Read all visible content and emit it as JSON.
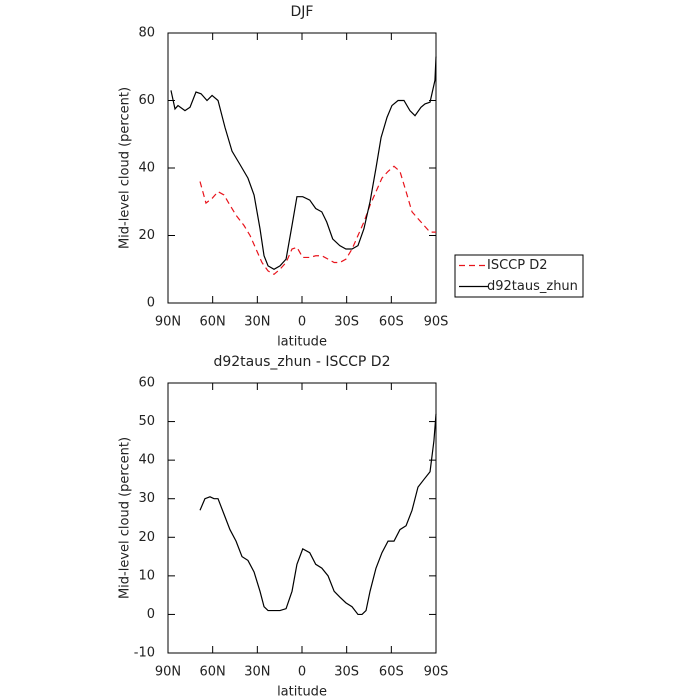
{
  "chart_data": [
    {
      "type": "line",
      "title": "DJF",
      "xlabel": "latitude",
      "ylabel": "Mid-level cloud (percent)",
      "xlim": [
        90,
        -90
      ],
      "xticks": [
        {
          "value": 90,
          "label": "90N"
        },
        {
          "value": 60,
          "label": "60N"
        },
        {
          "value": 30,
          "label": "30N"
        },
        0,
        {
          "value": -30,
          "label": "30S"
        },
        {
          "value": -60,
          "label": "60S"
        },
        {
          "value": -90,
          "label": "90S"
        }
      ],
      "ylim": [
        0,
        80
      ],
      "yticks": [
        0,
        20,
        40,
        60,
        80
      ],
      "legend": "right",
      "series": [
        {
          "name": "ISCCP D2",
          "color": "#e8141c",
          "line_style": "dashed",
          "x": [
            68.5,
            64.5,
            60.4,
            56.4,
            52.4,
            48.4,
            44.3,
            39,
            34.9,
            30.9,
            26.9,
            22.8,
            18.8,
            14.8,
            10.7,
            6.7,
            3.4,
            -0.5,
            -5.2,
            -9.2,
            -13.3,
            -17.5,
            -21.6,
            -25.4,
            -29.5,
            -33.6,
            -37.6,
            -41.6,
            -45.7,
            -49.7,
            -53.7,
            -57.8,
            -61.8,
            -65.8,
            -69.9,
            -73.9,
            -77.9,
            -81.9,
            -86,
            -90
          ],
          "values": [
            36,
            29.6,
            31,
            33,
            32,
            29,
            26,
            23,
            20,
            16,
            12,
            9.5,
            8.5,
            10,
            12,
            16,
            16.5,
            13.5,
            13.5,
            14,
            14,
            13,
            12,
            12,
            13,
            16,
            20,
            24,
            29,
            33,
            37,
            39,
            40.5,
            39,
            33,
            27,
            25,
            23,
            21,
            21
          ]
        },
        {
          "name": "d92taus_zhun",
          "color": "#000000",
          "line_style": "solid",
          "x": [
            88,
            85.3,
            83.3,
            78.6,
            75.2,
            71.2,
            67.8,
            63.8,
            60.4,
            56.4,
            51.7,
            47,
            41.6,
            36.3,
            32.2,
            28.2,
            25.5,
            22.8,
            18.8,
            14.8,
            10.7,
            6.7,
            3.4,
            -0.5,
            -5.2,
            -9.2,
            -13.3,
            -16.6,
            -20.6,
            -25.4,
            -29.5,
            -33.6,
            -37.6,
            -41.6,
            -45.7,
            -49.7,
            -53.1,
            -57.1,
            -60.4,
            -64.5,
            -68.5,
            -72.5,
            -75.9,
            -79.9,
            -82.6,
            -86,
            -89.3,
            -90
          ],
          "values": [
            63,
            57.5,
            58.5,
            57,
            58,
            62.5,
            62,
            60,
            61.5,
            60,
            52,
            45,
            41,
            37,
            32,
            22,
            14,
            11,
            10,
            11,
            13,
            23,
            31.5,
            31.5,
            30.5,
            28,
            27,
            24,
            19,
            17,
            16,
            16,
            17,
            22,
            30,
            40,
            49,
            55,
            58.5,
            60,
            60,
            57,
            55.5,
            58,
            59,
            59.5,
            66,
            73
          ]
        }
      ]
    },
    {
      "type": "line",
      "title": "d92taus_zhun - ISCCP D2",
      "xlabel": "latitude",
      "ylabel": "Mid-level cloud (percent)",
      "xlim": [
        90,
        -90
      ],
      "xticks": [
        {
          "value": 90,
          "label": "90N"
        },
        {
          "value": 60,
          "label": "60N"
        },
        {
          "value": 30,
          "label": "30N"
        },
        0,
        {
          "value": -30,
          "label": "30S"
        },
        {
          "value": -60,
          "label": "60S"
        },
        {
          "value": -90,
          "label": "90S"
        }
      ],
      "ylim": [
        -10,
        60
      ],
      "yticks": [
        -10,
        0,
        10,
        20,
        30,
        40,
        50,
        60
      ],
      "color": "#000000",
      "x": [
        68.5,
        65.2,
        61.8,
        59.1,
        56.4,
        52.4,
        48.4,
        44.3,
        40.3,
        36.3,
        32.2,
        28.2,
        25.5,
        22.8,
        18.8,
        14.8,
        10.7,
        6.7,
        3.4,
        -0.5,
        -5.2,
        -9.2,
        -13.3,
        -17.5,
        -21.6,
        -25.4,
        -29.5,
        -33.6,
        -37.6,
        -40.3,
        -43,
        -45.7,
        -49.7,
        -53.7,
        -57.8,
        -61.8,
        -65.8,
        -69.9,
        -73.9,
        -77.9,
        -81.9,
        -86,
        -88.6,
        -90
      ],
      "values": [
        27,
        30,
        30.5,
        30,
        30,
        26,
        22,
        19,
        15,
        14,
        11,
        6,
        2,
        1,
        1,
        1,
        1.5,
        6,
        13,
        17,
        16,
        13,
        12,
        10,
        6,
        4.5,
        3,
        2,
        0,
        0,
        1,
        6,
        12,
        16,
        19,
        19,
        22,
        23,
        27,
        33,
        35,
        37,
        45,
        52
      ]
    }
  ]
}
